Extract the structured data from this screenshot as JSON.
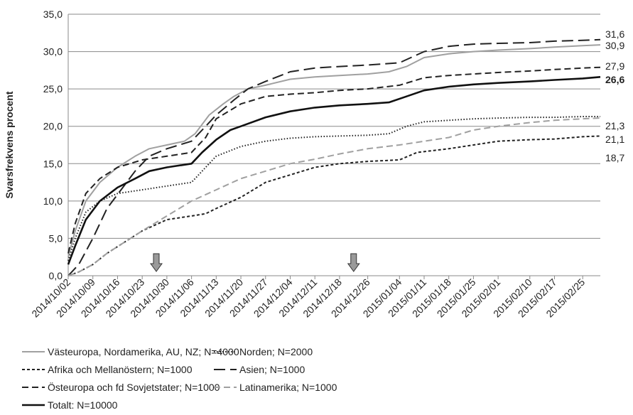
{
  "chart_data": {
    "type": "line",
    "title": "",
    "xlabel": "",
    "ylabel": "Svarsfrekvens procent",
    "ylim": [
      0,
      35
    ],
    "y_ticks": [
      "0,0",
      "5,0",
      "10,0",
      "15,0",
      "20,0",
      "25,0",
      "30,0",
      "35,0"
    ],
    "x_ticks": [
      "2014/10/02",
      "2014/10/09",
      "2014/10/16",
      "2014/10/23",
      "2014/10/30",
      "2014/11/06",
      "2014/11/13",
      "2014/11/20",
      "2014/11/27",
      "2014/12/04",
      "2014/12/11",
      "2014/12/18",
      "2014/12/26",
      "2015/01/04",
      "2015/01/11",
      "2015/01/18",
      "2015/01/25",
      "2015/02/01",
      "2015/02/10",
      "2015/02/17",
      "2015/02/25"
    ],
    "grid": "horizontal",
    "legend_position": "bottom",
    "markers": [
      {
        "x": "2014/10/27",
        "label": ""
      },
      {
        "x": "2014/12/22",
        "label": ""
      }
    ],
    "series": [
      {
        "name": "Västeuropa, Nordamerika, AU, NZ; N=4000",
        "color": "#a0a0a0",
        "dash": "solid",
        "end_label": "30,9",
        "x": [
          "2014/10/02",
          "2014/10/04",
          "2014/10/07",
          "2014/10/11",
          "2014/10/16",
          "2014/10/21",
          "2014/10/25",
          "2014/10/30",
          "2014/11/04",
          "2014/11/07",
          "2014/11/11",
          "2014/11/15",
          "2014/11/18",
          "2014/11/22",
          "2014/11/27",
          "2014/12/04",
          "2014/12/11",
          "2014/12/18",
          "2014/12/26",
          "2015/01/01",
          "2015/01/06",
          "2015/01/11",
          "2015/01/18",
          "2015/01/25",
          "2015/02/01",
          "2015/02/10",
          "2015/02/17",
          "2015/02/25",
          "2015/03/02"
        ],
        "values": [
          2.5,
          6.0,
          10.0,
          12.5,
          14.5,
          16.0,
          17.0,
          17.5,
          18.0,
          19.0,
          21.5,
          23.0,
          24.0,
          25.0,
          25.5,
          26.3,
          26.6,
          26.8,
          27.0,
          27.3,
          28.0,
          29.2,
          29.7,
          30.0,
          30.2,
          30.4,
          30.6,
          30.8,
          30.9
        ]
      },
      {
        "name": "Norden; N=2000",
        "color": "#222222",
        "dash": "dotted",
        "end_label": "21,3",
        "x": [
          "2014/10/02",
          "2014/10/04",
          "2014/10/07",
          "2014/10/11",
          "2014/10/16",
          "2014/10/23",
          "2014/10/30",
          "2014/11/06",
          "2014/11/10",
          "2014/11/13",
          "2014/11/20",
          "2014/11/27",
          "2014/12/04",
          "2014/12/11",
          "2014/12/18",
          "2014/12/26",
          "2015/01/01",
          "2015/01/06",
          "2015/01/11",
          "2015/01/18",
          "2015/01/25",
          "2015/02/01",
          "2015/02/10",
          "2015/02/17",
          "2015/02/25",
          "2015/03/02"
        ],
        "values": [
          2.0,
          5.0,
          8.5,
          10.0,
          11.0,
          11.5,
          12.0,
          12.5,
          14.5,
          16.0,
          17.3,
          18.0,
          18.4,
          18.6,
          18.7,
          18.8,
          19.0,
          20.0,
          20.6,
          20.8,
          21.0,
          21.1,
          21.2,
          21.2,
          21.3,
          21.3
        ]
      },
      {
        "name": "Afrika och Mellanöstern; N=1000",
        "color": "#222222",
        "dash": "short",
        "end_label": "18,7",
        "x": [
          "2014/10/02",
          "2014/10/05",
          "2014/10/09",
          "2014/10/13",
          "2014/10/18",
          "2014/10/23",
          "2014/10/30",
          "2014/11/06",
          "2014/11/10",
          "2014/11/13",
          "2014/11/20",
          "2014/11/27",
          "2014/12/04",
          "2014/12/11",
          "2014/12/18",
          "2014/12/26",
          "2015/01/04",
          "2015/01/09",
          "2015/01/18",
          "2015/01/25",
          "2015/02/01",
          "2015/02/10",
          "2015/02/17",
          "2015/02/25",
          "2015/03/02"
        ],
        "values": [
          0.0,
          0.5,
          1.5,
          3.0,
          4.5,
          6.0,
          7.5,
          8.0,
          8.3,
          9.0,
          10.5,
          12.5,
          13.5,
          14.5,
          15.0,
          15.3,
          15.5,
          16.5,
          17.0,
          17.5,
          18.0,
          18.2,
          18.3,
          18.6,
          18.7
        ]
      },
      {
        "name": "Asien; N=1000",
        "color": "#222222",
        "dash": "long",
        "end_label": "31,6",
        "x": [
          "2014/10/02",
          "2014/10/05",
          "2014/10/09",
          "2014/10/13",
          "2014/10/17",
          "2014/10/21",
          "2014/10/25",
          "2014/10/30",
          "2014/11/06",
          "2014/11/10",
          "2014/11/13",
          "2014/11/18",
          "2014/11/22",
          "2014/11/27",
          "2014/12/04",
          "2014/12/11",
          "2014/12/18",
          "2014/12/26",
          "2015/01/04",
          "2015/01/11",
          "2015/01/18",
          "2015/01/25",
          "2015/02/01",
          "2015/02/10",
          "2015/02/17",
          "2015/02/25",
          "2015/03/02"
        ],
        "values": [
          0.0,
          1.5,
          5.0,
          9.0,
          11.5,
          14.0,
          16.0,
          17.0,
          18.0,
          20.0,
          21.5,
          23.5,
          25.0,
          26.0,
          27.3,
          27.8,
          28.0,
          28.2,
          28.5,
          30.0,
          30.7,
          31.0,
          31.1,
          31.2,
          31.4,
          31.5,
          31.6
        ]
      },
      {
        "name": "Östeuropa och fd Sovjetstater; N=1000",
        "color": "#222222",
        "dash": "medium",
        "end_label": "27,9",
        "x": [
          "2014/10/02",
          "2014/10/04",
          "2014/10/07",
          "2014/10/11",
          "2014/10/16",
          "2014/10/23",
          "2014/10/30",
          "2014/11/06",
          "2014/11/10",
          "2014/11/13",
          "2014/11/20",
          "2014/11/27",
          "2014/12/04",
          "2014/12/11",
          "2014/12/18",
          "2014/12/26",
          "2015/01/04",
          "2015/01/11",
          "2015/01/18",
          "2015/01/25",
          "2015/02/01",
          "2015/02/10",
          "2015/02/17",
          "2015/02/25",
          "2015/03/02"
        ],
        "values": [
          3.0,
          7.0,
          11.0,
          13.0,
          14.5,
          15.5,
          16.0,
          16.5,
          18.5,
          21.0,
          23.0,
          24.0,
          24.3,
          24.5,
          24.8,
          25.0,
          25.5,
          26.5,
          26.8,
          27.0,
          27.2,
          27.4,
          27.6,
          27.8,
          27.9
        ]
      },
      {
        "name": "Latinamerika; N=1000",
        "color": "#a0a0a0",
        "dash": "medium",
        "end_label": "21,1",
        "x": [
          "2014/10/02",
          "2014/10/05",
          "2014/10/09",
          "2014/10/13",
          "2014/10/18",
          "2014/10/23",
          "2014/10/30",
          "2014/11/06",
          "2014/11/13",
          "2014/11/20",
          "2014/11/27",
          "2014/12/04",
          "2014/12/11",
          "2014/12/18",
          "2014/12/26",
          "2015/01/04",
          "2015/01/11",
          "2015/01/18",
          "2015/01/25",
          "2015/02/01",
          "2015/02/10",
          "2015/02/17",
          "2015/02/25",
          "2015/03/02"
        ],
        "values": [
          0.0,
          0.5,
          1.5,
          3.0,
          4.5,
          6.0,
          8.0,
          10.0,
          11.5,
          13.0,
          14.0,
          15.0,
          15.6,
          16.3,
          17.0,
          17.5,
          18.0,
          18.5,
          19.5,
          20.0,
          20.5,
          20.8,
          21.0,
          21.1
        ]
      },
      {
        "name": "Totalt: N=10000",
        "color": "#111111",
        "dash": "solid",
        "bold": true,
        "end_label": "26,6",
        "x": [
          "2014/10/02",
          "2014/10/04",
          "2014/10/07",
          "2014/10/11",
          "2014/10/16",
          "2014/10/21",
          "2014/10/25",
          "2014/10/30",
          "2014/11/06",
          "2014/11/09",
          "2014/11/13",
          "2014/11/17",
          "2014/11/20",
          "2014/11/27",
          "2014/12/04",
          "2014/12/11",
          "2014/12/18",
          "2014/12/26",
          "2015/01/01",
          "2015/01/06",
          "2015/01/11",
          "2015/01/18",
          "2015/01/25",
          "2015/02/01",
          "2015/02/10",
          "2015/02/17",
          "2015/02/25",
          "2015/03/02"
        ],
        "values": [
          1.5,
          4.0,
          7.5,
          10.0,
          11.8,
          13.0,
          14.0,
          14.5,
          15.0,
          16.5,
          18.2,
          19.5,
          20.0,
          21.2,
          22.0,
          22.5,
          22.8,
          23.0,
          23.2,
          24.0,
          24.8,
          25.3,
          25.6,
          25.8,
          26.0,
          26.2,
          26.4,
          26.6
        ]
      }
    ]
  }
}
